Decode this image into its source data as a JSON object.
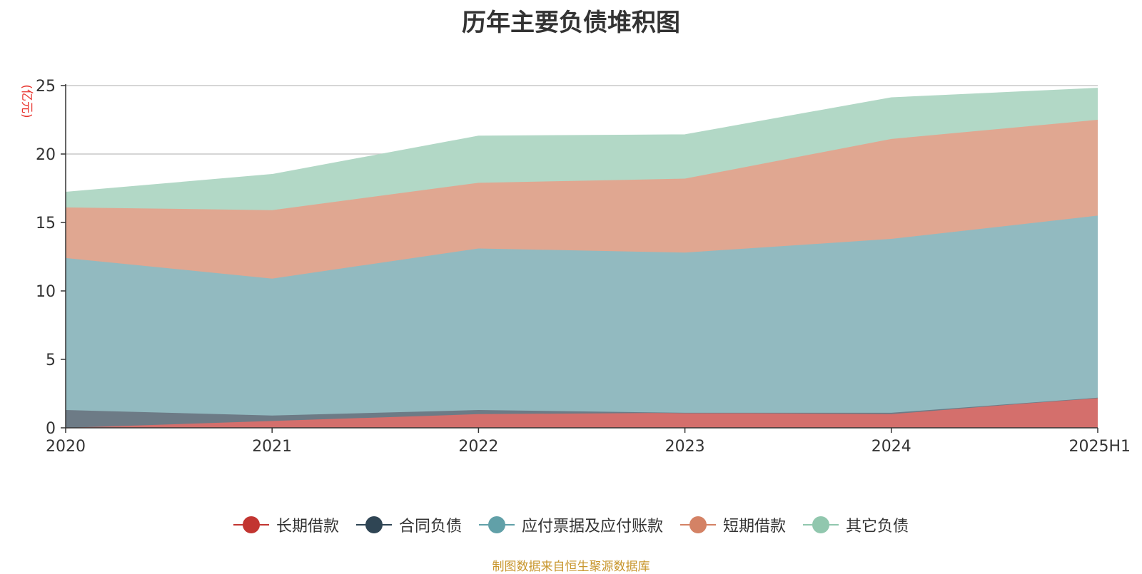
{
  "chart_data": {
    "type": "area",
    "stacked": true,
    "title": "历年主要负债堆积图",
    "ylabel": "(亿元)",
    "xlabel": "",
    "categories": [
      "2020",
      "2021",
      "2022",
      "2023",
      "2024",
      "2025H1"
    ],
    "ylim": [
      0,
      25
    ],
    "yticks": [
      0,
      5,
      10,
      15,
      20,
      25
    ],
    "grid": true,
    "legend_position": "bottom",
    "series": [
      {
        "name": "长期借款",
        "color": "#c23531",
        "area_color": "#d46f6c",
        "values": [
          0.0,
          0.5,
          1.0,
          1.1,
          1.0,
          2.2
        ]
      },
      {
        "name": "合同负债",
        "color": "#2f4554",
        "area_color": "#6d7b86",
        "values": [
          1.3,
          0.4,
          0.3,
          0.0,
          0.1,
          0.0
        ]
      },
      {
        "name": "应付票据及应付账款",
        "color": "#61a0a8",
        "area_color": "#92bac0",
        "values": [
          11.1,
          10.0,
          11.8,
          11.7,
          12.7,
          13.3
        ]
      },
      {
        "name": "短期借款",
        "color": "#d48265",
        "area_color": "#e0a791",
        "values": [
          3.7,
          5.0,
          4.8,
          5.4,
          7.3,
          7.0
        ]
      },
      {
        "name": "其它负债",
        "color": "#91c7ae",
        "area_color": "#b2d8c6",
        "values": [
          1.1,
          2.6,
          3.4,
          3.2,
          3.0,
          2.3
        ]
      }
    ],
    "source": "制图数据来自恒生聚源数据库"
  }
}
